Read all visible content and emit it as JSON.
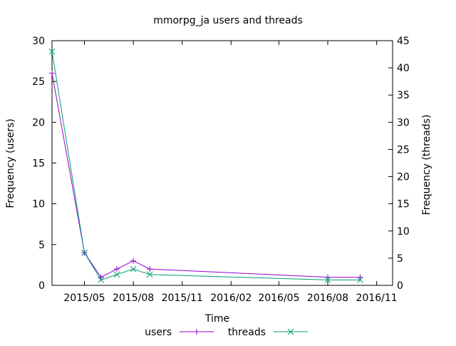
{
  "chart_data": {
    "type": "line",
    "title": "mmorpg_ja users and threads",
    "xlabel": "Time",
    "ylabel_left": "Frequency (users)",
    "ylabel_right": "Frequency (threads)",
    "x_ticks": [
      "2015/05",
      "2015/08",
      "2015/11",
      "2016/02",
      "2016/05",
      "2016/08",
      "2016/11"
    ],
    "x_tick_dates": [
      "2015-05-01",
      "2015-08-01",
      "2015-11-01",
      "2016-02-01",
      "2016-05-01",
      "2016-08-01",
      "2016-11-01"
    ],
    "xlim": [
      "2015-03-01",
      "2016-12-01"
    ],
    "ylim_left": [
      0,
      30
    ],
    "ylim_right": [
      0,
      45
    ],
    "y_ticks_left": [
      0,
      5,
      10,
      15,
      20,
      25,
      30
    ],
    "y_ticks_right": [
      0,
      5,
      10,
      15,
      20,
      25,
      30,
      35,
      40,
      45
    ],
    "grid": false,
    "legend_position": "bottom-center",
    "series": [
      {
        "name": "users",
        "axis": "left",
        "color": "#9400d3",
        "marker": "plus",
        "x": [
          "2015-03-01",
          "2015-05-01",
          "2015-06-01",
          "2015-07-01",
          "2015-08-01",
          "2015-09-01",
          "2016-08-01",
          "2016-10-01"
        ],
        "y": [
          26,
          4,
          1,
          2,
          3,
          2,
          1,
          1
        ]
      },
      {
        "name": "threads",
        "axis": "right",
        "color": "#009e73",
        "marker": "x",
        "x": [
          "2015-03-01",
          "2015-05-01",
          "2015-06-01",
          "2015-07-01",
          "2015-08-01",
          "2015-09-01",
          "2016-08-01",
          "2016-10-01"
        ],
        "y": [
          43,
          6,
          1,
          2,
          3,
          2,
          1,
          1
        ]
      }
    ]
  }
}
